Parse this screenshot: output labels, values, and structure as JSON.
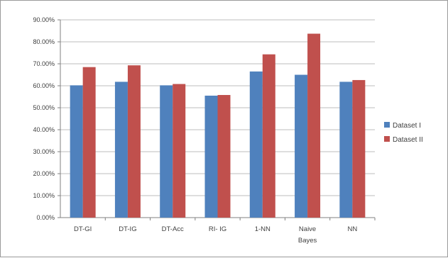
{
  "chart_data": {
    "type": "bar",
    "categories": [
      "DT-GI",
      "DT-IG",
      "DT-Acc",
      "RI- IG",
      "1-NN",
      "Naive Bayes",
      "NN"
    ],
    "category_lines": [
      [
        "DT-GI"
      ],
      [
        "DT-IG"
      ],
      [
        "DT-Acc"
      ],
      [
        "RI- IG"
      ],
      [
        "1-NN"
      ],
      [
        "Naive",
        "Bayes"
      ],
      [
        "NN"
      ]
    ],
    "series": [
      {
        "name": "Dataset I",
        "color": "#4f81bd",
        "values": [
          60.2,
          61.8,
          60.2,
          55.5,
          66.5,
          65.0,
          61.8
        ]
      },
      {
        "name": "Dataset II",
        "color": "#c0504d",
        "values": [
          68.5,
          69.3,
          60.8,
          55.8,
          74.3,
          83.7,
          62.6
        ]
      }
    ],
    "ylim": [
      0,
      90
    ],
    "yticks": [
      "0.00%",
      "10.00%",
      "20.00%",
      "30.00%",
      "40.00%",
      "50.00%",
      "60.00%",
      "70.00%",
      "80.00%",
      "90.00%"
    ],
    "grid": true,
    "legend_position": "right",
    "title": "",
    "xlabel": "",
    "ylabel": ""
  }
}
